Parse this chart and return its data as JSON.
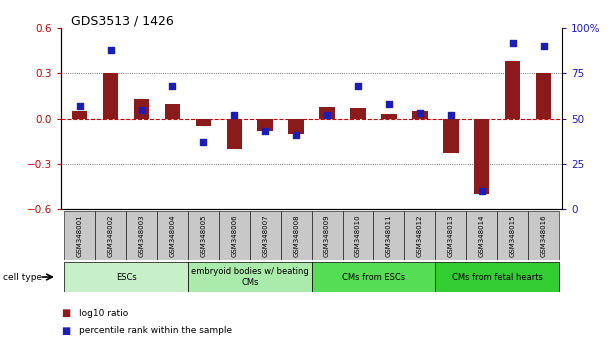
{
  "title": "GDS3513 / 1426",
  "samples": [
    "GSM348001",
    "GSM348002",
    "GSM348003",
    "GSM348004",
    "GSM348005",
    "GSM348006",
    "GSM348007",
    "GSM348008",
    "GSM348009",
    "GSM348010",
    "GSM348011",
    "GSM348012",
    "GSM348013",
    "GSM348014",
    "GSM348015",
    "GSM348016"
  ],
  "log10_ratio": [
    0.05,
    0.3,
    0.13,
    0.1,
    -0.05,
    -0.2,
    -0.08,
    -0.1,
    0.08,
    0.07,
    0.03,
    0.05,
    -0.23,
    -0.5,
    0.38,
    0.3
  ],
  "percentile_rank": [
    57,
    88,
    55,
    68,
    37,
    52,
    43,
    41,
    52,
    68,
    58,
    53,
    52,
    10,
    92,
    90
  ],
  "ylim_left": [
    -0.6,
    0.6
  ],
  "yticks_left": [
    -0.6,
    -0.3,
    0.0,
    0.3,
    0.6
  ],
  "yticks_right": [
    0,
    25,
    50,
    75,
    100
  ],
  "bar_color": "#8B1A1A",
  "dot_color": "#1C1CB8",
  "hline_color": "#CC0000",
  "dotted_color": "#444444",
  "cell_type_groups": [
    {
      "label": "ESCs",
      "start": 0,
      "end": 3,
      "color": "#C8F0C8"
    },
    {
      "label": "embryoid bodies w/ beating\nCMs",
      "start": 4,
      "end": 7,
      "color": "#AAEAAA"
    },
    {
      "label": "CMs from ESCs",
      "start": 8,
      "end": 11,
      "color": "#55DD55"
    },
    {
      "label": "CMs from fetal hearts",
      "start": 12,
      "end": 15,
      "color": "#33CC33"
    }
  ],
  "legend_items": [
    {
      "label": "log10 ratio",
      "color": "#8B1A1A"
    },
    {
      "label": "percentile rank within the sample",
      "color": "#1C1CB8"
    }
  ],
  "cell_type_label": "cell type",
  "sample_box_color": "#C8C8C8",
  "bar_width": 0.5
}
